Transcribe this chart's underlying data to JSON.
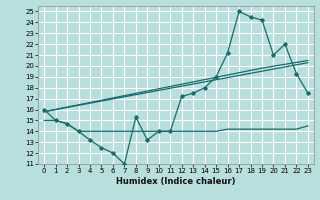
{
  "xlabel": "Humidex (Indice chaleur)",
  "bg_color": "#b8dede",
  "line_color": "#1a6b6b",
  "grid_color": "#ffffff",
  "xlim": [
    -0.5,
    23.5
  ],
  "ylim": [
    11,
    25.5
  ],
  "yticks": [
    11,
    12,
    13,
    14,
    15,
    16,
    17,
    18,
    19,
    20,
    21,
    22,
    23,
    24,
    25
  ],
  "xticks": [
    0,
    1,
    2,
    3,
    4,
    5,
    6,
    7,
    8,
    9,
    10,
    11,
    12,
    13,
    14,
    15,
    16,
    17,
    18,
    19,
    20,
    21,
    22,
    23
  ],
  "main_x": [
    0,
    1,
    2,
    3,
    4,
    5,
    6,
    7,
    8,
    9,
    10,
    11,
    12,
    13,
    14,
    15,
    16,
    17,
    18,
    19,
    20,
    21,
    22,
    23
  ],
  "main_y": [
    16,
    15,
    14.7,
    14,
    13.2,
    12.5,
    12,
    11,
    15.3,
    13.2,
    14,
    14,
    17.2,
    17.5,
    18,
    19,
    21.2,
    25,
    24.5,
    24.2,
    21,
    22,
    19.3,
    17.5
  ],
  "flat_x": [
    0,
    1,
    2,
    3,
    4,
    5,
    6,
    7,
    8,
    9,
    10,
    11,
    12,
    13,
    14,
    15,
    16,
    17,
    18,
    19,
    20,
    21,
    22,
    23
  ],
  "flat_y": [
    15,
    15,
    14.7,
    14,
    14,
    14,
    14,
    14,
    14,
    14,
    14,
    14,
    14,
    14,
    14,
    14,
    14.2,
    14.2,
    14.2,
    14.2,
    14.2,
    14.2,
    14.2,
    14.5
  ],
  "trend1_x": [
    0,
    23
  ],
  "trend1_y": [
    15.8,
    20.3
  ],
  "trend2_x": [
    0,
    19,
    23
  ],
  "trend2_y": [
    15.8,
    19.8,
    20.5
  ]
}
